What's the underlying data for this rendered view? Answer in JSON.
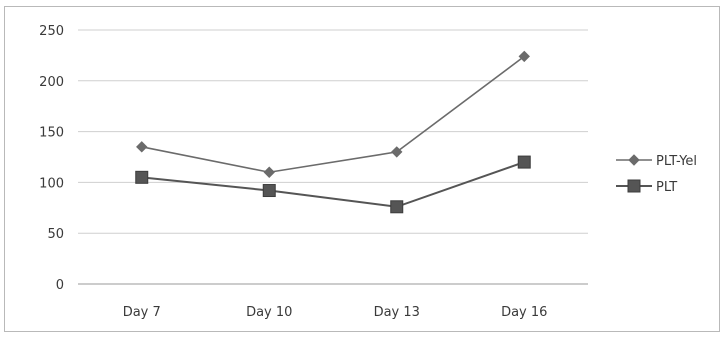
{
  "chart_data": {
    "type": "line",
    "categories": [
      "Day 7",
      "Day 10",
      "Day 13",
      "Day 16"
    ],
    "ylim": [
      0,
      250
    ],
    "yticks": [
      0,
      50,
      100,
      150,
      200,
      250
    ],
    "grid": true,
    "legend_position": "right",
    "series": [
      {
        "name": "PLT-Yel",
        "values": [
          135,
          110,
          130,
          224
        ],
        "marker": "diamond",
        "color": "#6b6b6b"
      },
      {
        "name": "PLT",
        "values": [
          105,
          92,
          76,
          120
        ],
        "marker": "square",
        "color": "#555555"
      }
    ]
  }
}
